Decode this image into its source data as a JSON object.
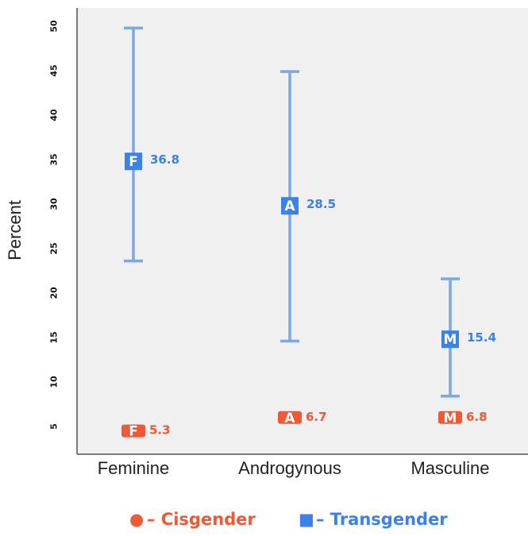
{
  "chart_data": {
    "type": "scatter",
    "ylabel": "Percent",
    "ylim": [
      3,
      51.5
    ],
    "yticks": [
      5,
      10,
      15,
      20,
      25,
      30,
      35,
      40,
      45,
      50
    ],
    "categories": [
      "Feminine",
      "Androgynous",
      "Masculine"
    ],
    "grid": false,
    "legend_position": "bottom",
    "colors": {
      "cisgender": "#ee5a36",
      "transgender": "#3b82e8",
      "errorbar": "#7aa7e6",
      "plot_bg": "#f0f0f0"
    },
    "series": [
      {
        "name": "Cisgender",
        "marker": "circle",
        "letters": [
          "F",
          "A",
          "M"
        ],
        "values": [
          5.3,
          6.7,
          6.8
        ],
        "plot_y": [
          4.5,
          6.0,
          6.0
        ],
        "error_low": [
          null,
          null,
          null
        ],
        "error_high": [
          null,
          null,
          null
        ]
      },
      {
        "name": "Transgender",
        "marker": "square",
        "letters": [
          "F",
          "A",
          "M"
        ],
        "values": [
          36.8,
          28.5,
          15.4
        ],
        "plot_y": [
          34.8,
          29.8,
          14.8
        ],
        "error_low": [
          23.6,
          14.6,
          8.4
        ],
        "error_high": [
          49.8,
          44.9,
          21.6
        ]
      }
    ],
    "legend": [
      {
        "marker": "●",
        "label": "– Cisgender"
      },
      {
        "marker": "■",
        "label": "– Transgender"
      }
    ]
  }
}
